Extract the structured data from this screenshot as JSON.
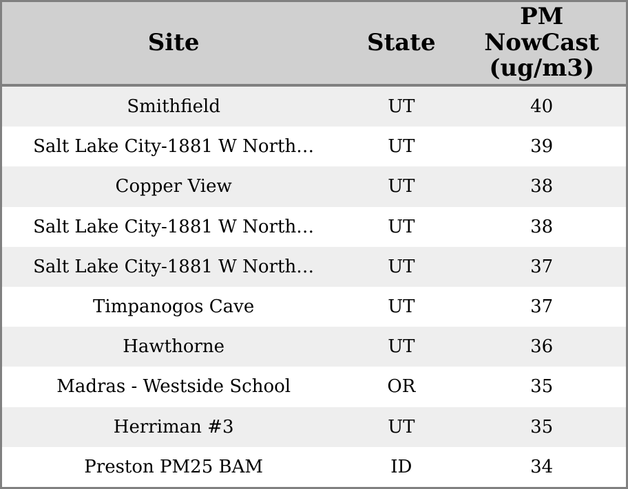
{
  "colors": {
    "header_bg": "#d0d0d0",
    "stripe_row_bg": "#eeeeee",
    "plain_row_bg": "#ffffff",
    "border": "#808080",
    "text": "#000000"
  },
  "chart_data": {
    "type": "table",
    "title": "",
    "columns": [
      "Site",
      "State",
      "PM NowCast (ug/m3)"
    ],
    "rows": [
      {
        "site": "Smithfield",
        "state": "UT",
        "pm_nowcast": "40"
      },
      {
        "site": "Salt Lake City-1881 W North…",
        "state": "UT",
        "pm_nowcast": "39"
      },
      {
        "site": "Copper View",
        "state": "UT",
        "pm_nowcast": "38"
      },
      {
        "site": "Salt Lake City-1881 W North…",
        "state": "UT",
        "pm_nowcast": "38"
      },
      {
        "site": "Salt Lake City-1881 W North…",
        "state": "UT",
        "pm_nowcast": "37"
      },
      {
        "site": "Timpanogos Cave",
        "state": "UT",
        "pm_nowcast": "37"
      },
      {
        "site": "Hawthorne",
        "state": "UT",
        "pm_nowcast": "36"
      },
      {
        "site": "Madras - Westside School",
        "state": "OR",
        "pm_nowcast": "35"
      },
      {
        "site": "Herriman #3",
        "state": "UT",
        "pm_nowcast": "35"
      },
      {
        "site": "Preston PM25 BAM",
        "state": "ID",
        "pm_nowcast": "34"
      }
    ],
    "layout": {
      "striped_rows": true,
      "header_position": "top",
      "column_alignment": [
        "center",
        "center",
        "center"
      ]
    }
  }
}
